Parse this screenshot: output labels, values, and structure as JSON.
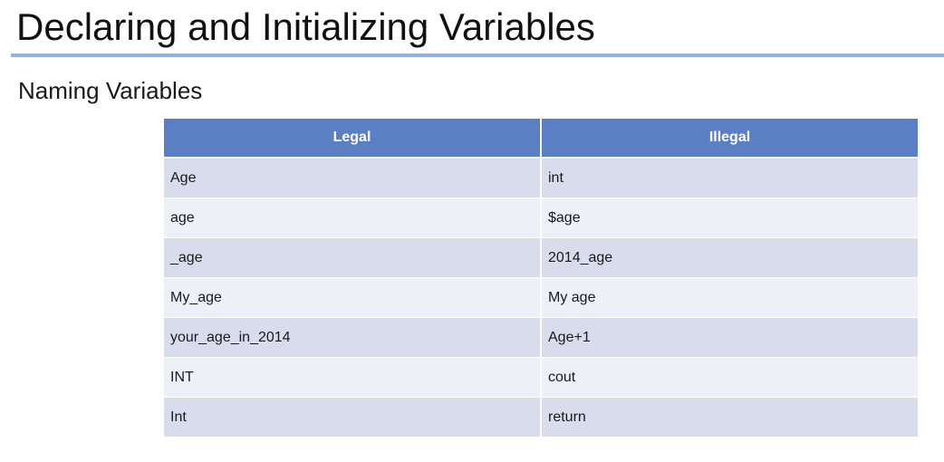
{
  "slide": {
    "title": "Declaring and Initializing Variables",
    "subtitle": "Naming Variables"
  },
  "table": {
    "headers": [
      "Legal",
      "Illegal"
    ],
    "rows": [
      [
        "Age",
        "int"
      ],
      [
        "age",
        "$age"
      ],
      [
        "_age",
        "2014_age"
      ],
      [
        "My_age",
        "My age"
      ],
      [
        "your_age_in_2014",
        "Age+1"
      ],
      [
        "INT",
        "cout"
      ],
      [
        "Int",
        "return"
      ]
    ]
  },
  "colors": {
    "header_fill": "#5b7fc3",
    "row_band_dark": "#d9dcec",
    "row_band_light": "#eef0f7",
    "title_rule": "#8fb4e3"
  }
}
